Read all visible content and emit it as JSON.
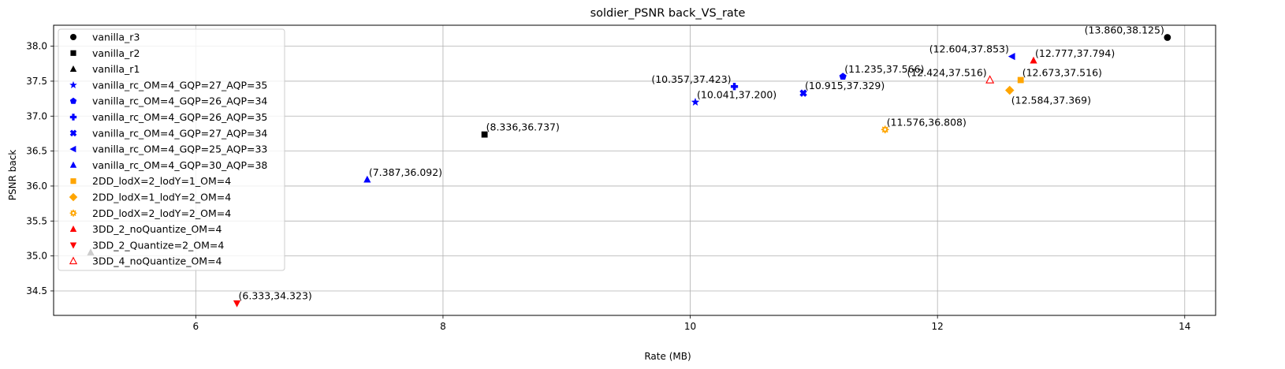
{
  "chart_data": {
    "type": "scatter",
    "title": "soldier_PSNR back_VS_rate",
    "xlabel": "Rate (MB)",
    "ylabel": "PSNR back",
    "xlim": [
      4.85,
      14.25
    ],
    "ylim": [
      34.15,
      38.3
    ],
    "xticks": [
      6,
      8,
      10,
      12,
      14
    ],
    "yticks": [
      34.5,
      35.0,
      35.5,
      36.0,
      36.5,
      37.0,
      37.5,
      38.0
    ],
    "xtick_labels": [
      "6",
      "8",
      "10",
      "12",
      "14"
    ],
    "ytick_labels": [
      "34.5",
      "35.0",
      "35.5",
      "36.0",
      "36.5",
      "37.0",
      "37.5",
      "38.0"
    ],
    "grid": true,
    "legend_position": "top-left",
    "series": [
      {
        "name": "vanilla_r3",
        "marker": "circle",
        "color": "#000000",
        "points": [
          {
            "x": 13.86,
            "y": 38.125,
            "label": "(13.860,38.125)",
            "anchor": "end"
          }
        ]
      },
      {
        "name": "vanilla_r2",
        "marker": "square",
        "color": "#000000",
        "points": [
          {
            "x": 8.336,
            "y": 36.737,
            "label": "(8.336,36.737)",
            "anchor": "start"
          }
        ]
      },
      {
        "name": "vanilla_r1",
        "marker": "triangle-up",
        "color": "#000000",
        "points": [
          {
            "x": 5.15,
            "y": 35.05,
            "label": "",
            "anchor": "start"
          }
        ]
      },
      {
        "name": "vanilla_rc_OM=4_GQP=27_AQP=35",
        "marker": "star",
        "color": "#0000ff",
        "points": [
          {
            "x": 10.041,
            "y": 37.2,
            "label": "(10.041,37.200)",
            "anchor": "start"
          }
        ]
      },
      {
        "name": "vanilla_rc_OM=4_GQP=26_AQP=34",
        "marker": "pentagon",
        "color": "#0000ff",
        "points": [
          {
            "x": 11.235,
            "y": 37.566,
            "label": "(11.235,37.566)",
            "anchor": "start"
          }
        ]
      },
      {
        "name": "vanilla_rc_OM=4_GQP=26_AQP=35",
        "marker": "plus",
        "color": "#0000ff",
        "points": [
          {
            "x": 10.357,
            "y": 37.423,
            "label": "(10.357,37.423)",
            "anchor": "end"
          }
        ]
      },
      {
        "name": "vanilla_rc_OM=4_GQP=27_AQP=34",
        "marker": "x",
        "color": "#0000ff",
        "points": [
          {
            "x": 10.915,
            "y": 37.329,
            "label": "(10.915,37.329)",
            "anchor": "start"
          }
        ]
      },
      {
        "name": "vanilla_rc_OM=4_GQP=25_AQP=33",
        "marker": "triangle-left",
        "color": "#0000ff",
        "points": [
          {
            "x": 12.604,
            "y": 37.853,
            "label": "(12.604,37.853)",
            "anchor": "end"
          }
        ]
      },
      {
        "name": "vanilla_rc_OM=4_GQP=30_AQP=38",
        "marker": "triangle-up",
        "color": "#0000ff",
        "points": [
          {
            "x": 7.387,
            "y": 36.092,
            "label": "(7.387,36.092)",
            "anchor": "start"
          }
        ]
      },
      {
        "name": "2DD_lodX=2_lodY=1_OM=4",
        "marker": "square",
        "color": "#ffa500",
        "points": [
          {
            "x": 12.673,
            "y": 37.516,
            "label": "(12.673,37.516)",
            "anchor": "start"
          }
        ]
      },
      {
        "name": "2DD_lodX=1_lodY=2_OM=4",
        "marker": "diamond",
        "color": "#ffa500",
        "points": [
          {
            "x": 12.584,
            "y": 37.369,
            "label": "(12.584,37.369)",
            "anchor": "start",
            "below": true
          }
        ]
      },
      {
        "name": "2DD_lodX=2_lodY=2_OM=4",
        "marker": "gear",
        "color": "#ffa500",
        "points": [
          {
            "x": 11.576,
            "y": 36.808,
            "label": "(11.576,36.808)",
            "anchor": "start"
          }
        ]
      },
      {
        "name": "3DD_2_noQuantize_OM=4",
        "marker": "triangle-up",
        "color": "#ff0000",
        "points": [
          {
            "x": 12.777,
            "y": 37.794,
            "label": "(12.777,37.794)",
            "anchor": "start"
          }
        ]
      },
      {
        "name": "3DD_2_Quantize=2_OM=4",
        "marker": "triangle-down",
        "color": "#ff0000",
        "points": [
          {
            "x": 6.333,
            "y": 34.323,
            "label": "(6.333,34.323)",
            "anchor": "start"
          }
        ]
      },
      {
        "name": "3DD_4_noQuantize_OM=4",
        "marker": "triangle-up-open",
        "color": "#ff0000",
        "points": [
          {
            "x": 12.424,
            "y": 37.516,
            "label": "(12.424,37.516)",
            "anchor": "end"
          }
        ]
      }
    ]
  }
}
